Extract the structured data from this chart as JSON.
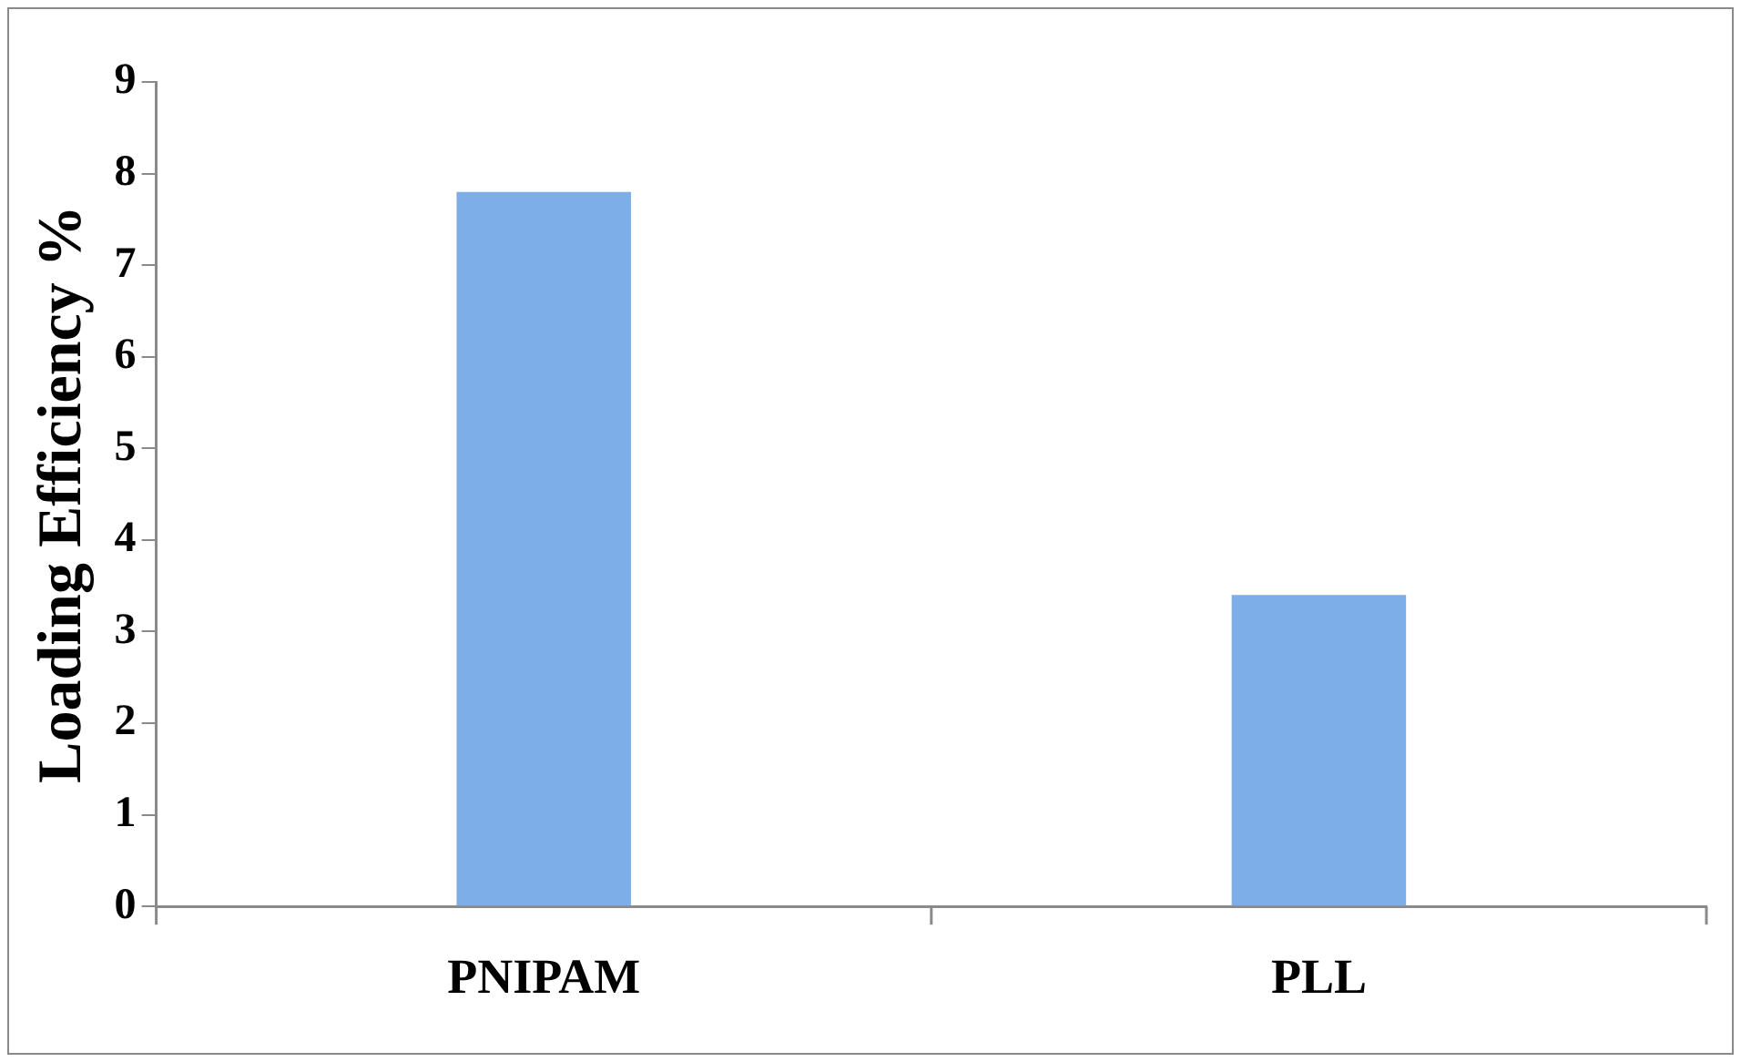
{
  "chart_data": {
    "type": "bar",
    "ylabel": "Loading Efficiency %",
    "categories": [
      "PNIPAM",
      "PLL"
    ],
    "values": [
      7.8,
      3.4
    ],
    "color": "#7eaee8",
    "ylim": [
      0,
      9
    ],
    "yticks": [
      0,
      1,
      2,
      3,
      4,
      5,
      6,
      7,
      8,
      9
    ],
    "grid": false,
    "legend": false
  }
}
